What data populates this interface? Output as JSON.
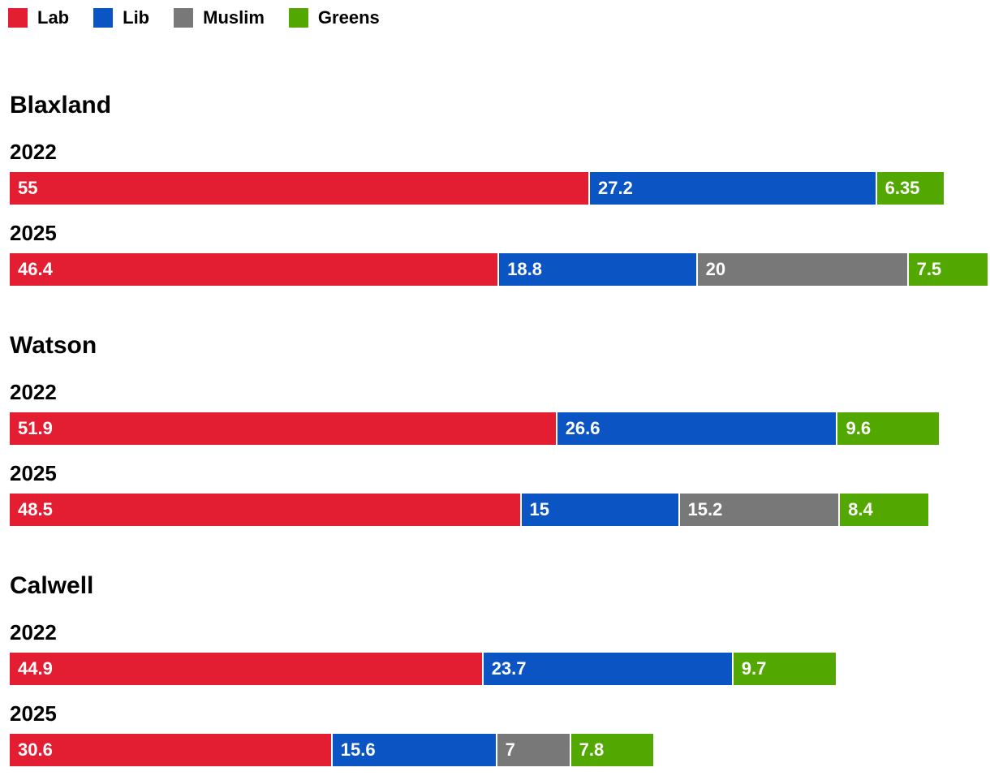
{
  "chart_data": {
    "type": "bar",
    "orientation": "horizontal",
    "stacked": true,
    "legend_position": "top-left",
    "grid": false,
    "title": "",
    "xlabel": "",
    "ylabel": "",
    "legend": [
      {
        "name": "Lab",
        "color": "#e31e32"
      },
      {
        "name": "Lib",
        "color": "#0b54c4"
      },
      {
        "name": "Muslim",
        "color": "#787878"
      },
      {
        "name": "Greens",
        "color": "#52a800"
      }
    ],
    "groups": [
      {
        "name": "Blaxland",
        "rows": [
          {
            "year": "2022",
            "segments": [
              {
                "series": "Lab",
                "value": 55,
                "label": "55"
              },
              {
                "series": "Lib",
                "value": 27.2,
                "label": "27.2"
              },
              {
                "series": "Greens",
                "value": 6.35,
                "label": "6.35"
              }
            ]
          },
          {
            "year": "2025",
            "segments": [
              {
                "series": "Lab",
                "value": 46.4,
                "label": "46.4"
              },
              {
                "series": "Lib",
                "value": 18.8,
                "label": "18.8"
              },
              {
                "series": "Muslim",
                "value": 20,
                "label": "20"
              },
              {
                "series": "Greens",
                "value": 7.5,
                "label": "7.5"
              }
            ]
          }
        ]
      },
      {
        "name": "Watson",
        "rows": [
          {
            "year": "2022",
            "segments": [
              {
                "series": "Lab",
                "value": 51.9,
                "label": "51.9"
              },
              {
                "series": "Lib",
                "value": 26.6,
                "label": "26.6"
              },
              {
                "series": "Greens",
                "value": 9.6,
                "label": "9.6"
              }
            ]
          },
          {
            "year": "2025",
            "segments": [
              {
                "series": "Lab",
                "value": 48.5,
                "label": "48.5"
              },
              {
                "series": "Lib",
                "value": 15,
                "label": "15"
              },
              {
                "series": "Muslim",
                "value": 15.2,
                "label": "15.2"
              },
              {
                "series": "Greens",
                "value": 8.4,
                "label": "8.4"
              }
            ]
          }
        ]
      },
      {
        "name": "Calwell",
        "rows": [
          {
            "year": "2022",
            "segments": [
              {
                "series": "Lab",
                "value": 44.9,
                "label": "44.9"
              },
              {
                "series": "Lib",
                "value": 23.7,
                "label": "23.7"
              },
              {
                "series": "Greens",
                "value": 9.7,
                "label": "9.7"
              }
            ]
          },
          {
            "year": "2025",
            "segments": [
              {
                "series": "Lab",
                "value": 30.6,
                "label": "30.6"
              },
              {
                "series": "Lib",
                "value": 15.6,
                "label": "15.6"
              },
              {
                "series": "Muslim",
                "value": 7,
                "label": "7"
              },
              {
                "series": "Greens",
                "value": 7.8,
                "label": "7.8"
              }
            ]
          }
        ]
      }
    ]
  }
}
